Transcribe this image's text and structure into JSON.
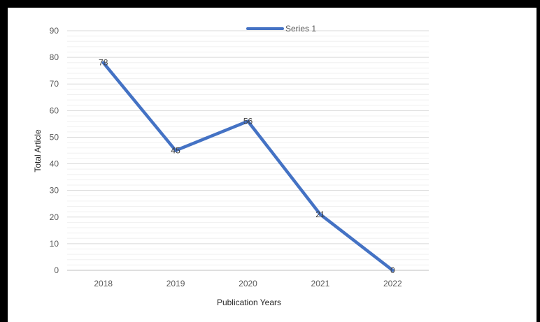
{
  "chart_data": {
    "type": "line",
    "categories": [
      "2018",
      "2019",
      "2020",
      "2021",
      "2022"
    ],
    "series": [
      {
        "name": "Series 1",
        "values": [
          78,
          45,
          56,
          21,
          0
        ],
        "color": "#4472C4"
      }
    ],
    "data_labels": [
      "78",
      "45",
      "56",
      "21",
      "0"
    ],
    "title": "",
    "xlabel": "Publication Years",
    "ylabel": "Total Article",
    "ylim": [
      0,
      90
    ],
    "yticks": [
      0,
      10,
      20,
      30,
      40,
      50,
      60,
      70,
      80,
      90
    ],
    "grid": true,
    "gridline_color": "#d9d9d9",
    "legend_position": "top"
  }
}
